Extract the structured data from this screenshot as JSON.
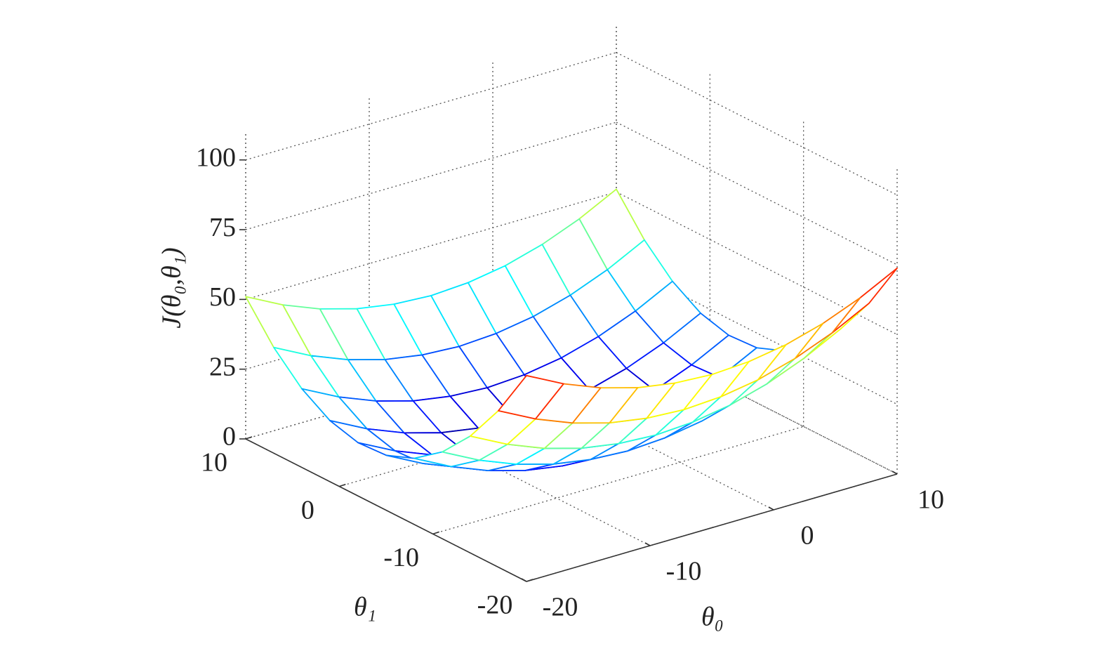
{
  "chart_data": {
    "type": "mesh",
    "xlabel": "θ₀",
    "ylabel": "θ₁",
    "zlabel": "J(θ₀,θ₁)",
    "x": [
      -20,
      -17,
      -14,
      -11,
      -8,
      -5,
      -2,
      1,
      4,
      7,
      10
    ],
    "y": [
      -20,
      -17,
      -14,
      -11,
      -8,
      -5,
      -2,
      1,
      4,
      7,
      10
    ],
    "z": [
      [
        73.8,
        67.0,
        61.7,
        57.9,
        55.7,
        54.9,
        55.7,
        57.9,
        61.7,
        67.0,
        73.8
      ],
      [
        56.1,
        49.3,
        44.0,
        40.2,
        38.0,
        37.2,
        38.0,
        40.2,
        44.0,
        49.3,
        56.1
      ],
      [
        41.9,
        35.1,
        29.8,
        26.0,
        23.8,
        23.0,
        23.8,
        26.0,
        29.8,
        35.1,
        41.9
      ],
      [
        31.1,
        24.3,
        19.0,
        15.2,
        13.0,
        12.2,
        13.0,
        15.2,
        19.0,
        24.3,
        31.1
      ],
      [
        23.7,
        16.9,
        11.6,
        7.8,
        5.6,
        4.8,
        5.6,
        7.8,
        11.6,
        16.9,
        23.7
      ],
      [
        19.7,
        12.9,
        7.6,
        3.8,
        1.6,
        0.8,
        1.6,
        3.8,
        7.6,
        12.9,
        19.7
      ],
      [
        19.1,
        12.3,
        7.0,
        3.2,
        1.0,
        0.2,
        1.0,
        3.2,
        7.0,
        12.3,
        19.1
      ],
      [
        21.9,
        15.1,
        9.8,
        6.0,
        3.8,
        3.0,
        3.8,
        6.0,
        9.8,
        15.1,
        21.9
      ],
      [
        28.2,
        21.4,
        16.1,
        12.3,
        10.1,
        9.3,
        10.1,
        12.3,
        16.1,
        21.4,
        28.2
      ],
      [
        37.9,
        31.1,
        25.8,
        22.0,
        19.8,
        19.0,
        19.8,
        22.0,
        25.8,
        31.1,
        37.9
      ],
      [
        51.0,
        44.2,
        38.9,
        35.1,
        32.9,
        32.1,
        32.9,
        35.1,
        38.9,
        44.2,
        51.0
      ]
    ],
    "xlim": [
      -20,
      10
    ],
    "ylim": [
      -20,
      10
    ],
    "zlim": [
      0,
      110
    ],
    "xticks": [
      -20,
      -10,
      0,
      10
    ],
    "yticks": [
      -20,
      -10,
      0,
      10
    ],
    "zticks": [
      0,
      25,
      50,
      75,
      100
    ],
    "colormap": "jet",
    "grid": true
  }
}
